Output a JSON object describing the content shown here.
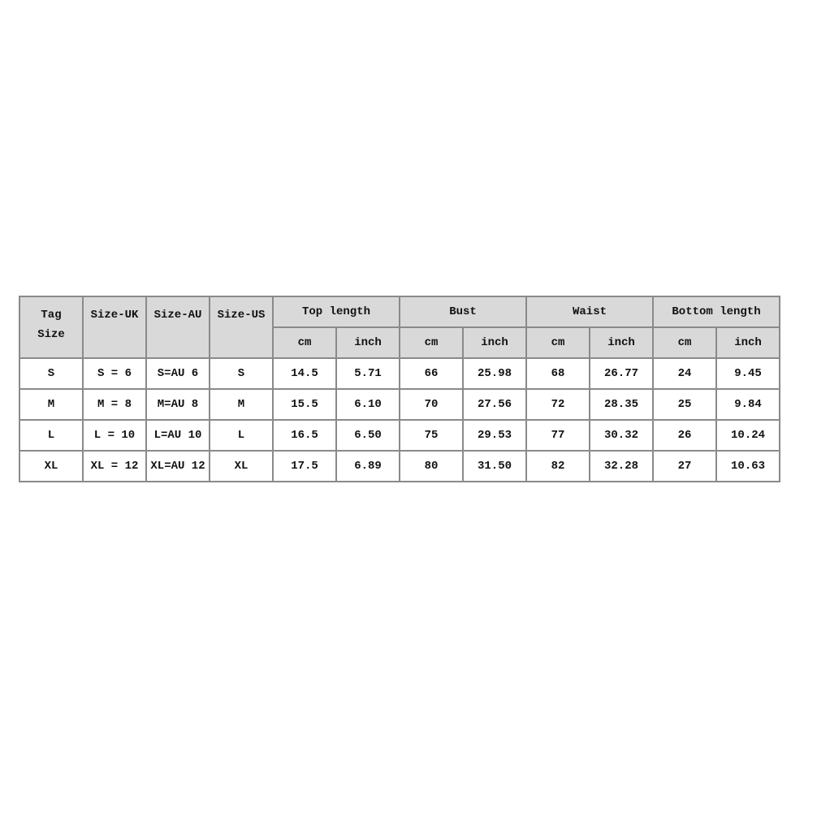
{
  "header": {
    "tag_size": [
      "Tag",
      "Size"
    ],
    "size_uk": "Size-UK",
    "size_au": "Size-AU",
    "size_us": "Size-US",
    "groups": [
      "Top length",
      "Bust",
      "Waist",
      "Bottom length"
    ],
    "units": [
      "cm",
      "inch",
      "cm",
      "inch",
      "cm",
      "inch",
      "cm",
      "inch"
    ]
  },
  "rows": [
    [
      "S",
      "S = 6",
      "S=AU 6",
      "S",
      "14.5",
      "5.71",
      "66",
      "25.98",
      "68",
      "26.77",
      "24",
      "9.45"
    ],
    [
      "M",
      "M = 8",
      "M=AU 8",
      "M",
      "15.5",
      "6.10",
      "70",
      "27.56",
      "72",
      "28.35",
      "25",
      "9.84"
    ],
    [
      "L",
      "L = 10",
      "L=AU 10",
      "L",
      "16.5",
      "6.50",
      "75",
      "29.53",
      "77",
      "30.32",
      "26",
      "10.24"
    ],
    [
      "XL",
      "XL = 12",
      "XL=AU 12",
      "XL",
      "17.5",
      "6.89",
      "80",
      "31.50",
      "82",
      "32.28",
      "27",
      "10.63"
    ]
  ],
  "colors": {
    "header_bg": "#d9d9d9",
    "border": "#8a8a8a"
  }
}
